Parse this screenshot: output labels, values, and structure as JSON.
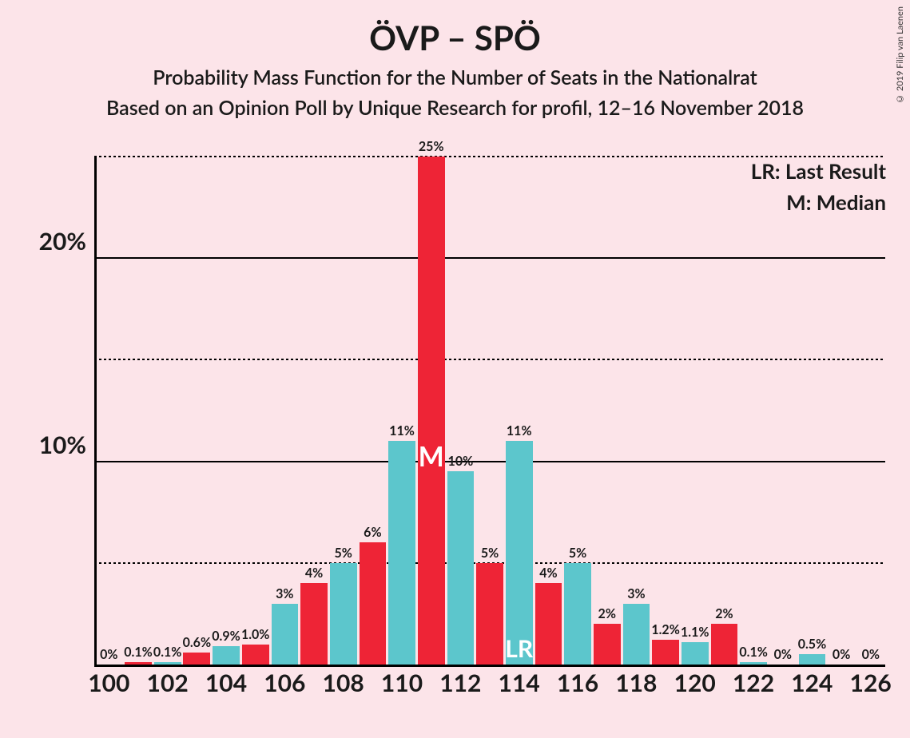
{
  "title": "ÖVP – SPÖ",
  "subtitle1": "Probability Mass Function for the Number of Seats in the Nationalrat",
  "subtitle2": "Based on an Opinion Poll by Unique Research for profil, 12–16 November 2018",
  "copyright": "© 2019 Filip van Laenen",
  "legend": {
    "lr": "LR: Last Result",
    "m": "M: Median"
  },
  "chart": {
    "type": "bar",
    "background_color": "#fce4e9",
    "colors": {
      "red": "#ee2436",
      "teal": "#5cc6cc"
    },
    "title_fontsize": 42,
    "subtitle_fontsize": 25,
    "axis_label_fontsize": 30,
    "bar_label_fontsize": 16,
    "marker_fontsize": 34,
    "ylim": [
      0,
      25
    ],
    "y_major_ticks": [
      10,
      20
    ],
    "y_minor_ticks": [
      5,
      15,
      25
    ],
    "y_tick_labels": {
      "10": "10%",
      "20": "20%"
    },
    "x_tick_labels": [
      "100",
      "102",
      "104",
      "106",
      "108",
      "110",
      "112",
      "114",
      "116",
      "118",
      "120",
      "122",
      "124",
      "126"
    ],
    "x_range": [
      100,
      126
    ],
    "bar_width": 0.92,
    "bars": [
      {
        "x": 100,
        "v": 0,
        "label": "0%",
        "c": "teal"
      },
      {
        "x": 101,
        "v": 0.1,
        "label": "0.1%",
        "c": "red"
      },
      {
        "x": 102,
        "v": 0.1,
        "label": "0.1%",
        "c": "teal"
      },
      {
        "x": 103,
        "v": 0.6,
        "label": "0.6%",
        "c": "red"
      },
      {
        "x": 104,
        "v": 0.9,
        "label": "0.9%",
        "c": "teal"
      },
      {
        "x": 105,
        "v": 1.0,
        "label": "1.0%",
        "c": "red"
      },
      {
        "x": 106,
        "v": 3,
        "label": "3%",
        "c": "teal"
      },
      {
        "x": 107,
        "v": 4,
        "label": "4%",
        "c": "red"
      },
      {
        "x": 108,
        "v": 5,
        "label": "5%",
        "c": "teal"
      },
      {
        "x": 109,
        "v": 6,
        "label": "6%",
        "c": "red"
      },
      {
        "x": 110,
        "v": 11,
        "label": "11%",
        "c": "teal"
      },
      {
        "x": 111,
        "v": 25,
        "label": "25%",
        "c": "red",
        "marker": "M"
      },
      {
        "x": 112,
        "v": 9.5,
        "label": "10%",
        "c": "teal"
      },
      {
        "x": 113,
        "v": 5,
        "label": "5%",
        "c": "red"
      },
      {
        "x": 114,
        "v": 11,
        "label": "11%",
        "c": "teal",
        "marker": "LR"
      },
      {
        "x": 115,
        "v": 4,
        "label": "4%",
        "c": "red"
      },
      {
        "x": 116,
        "v": 5,
        "label": "5%",
        "c": "teal"
      },
      {
        "x": 117,
        "v": 2,
        "label": "2%",
        "c": "red"
      },
      {
        "x": 118,
        "v": 3,
        "label": "3%",
        "c": "teal"
      },
      {
        "x": 119,
        "v": 1.2,
        "label": "1.2%",
        "c": "red"
      },
      {
        "x": 120,
        "v": 1.1,
        "label": "1.1%",
        "c": "teal"
      },
      {
        "x": 121,
        "v": 2,
        "label": "2%",
        "c": "red"
      },
      {
        "x": 122,
        "v": 0.1,
        "label": "0.1%",
        "c": "teal"
      },
      {
        "x": 123,
        "v": 0,
        "label": "0%",
        "c": "red"
      },
      {
        "x": 124,
        "v": 0.5,
        "label": "0.5%",
        "c": "teal"
      },
      {
        "x": 125,
        "v": 0,
        "label": "0%",
        "c": "red"
      },
      {
        "x": 126,
        "v": 0,
        "label": "0%",
        "c": "teal"
      }
    ]
  }
}
